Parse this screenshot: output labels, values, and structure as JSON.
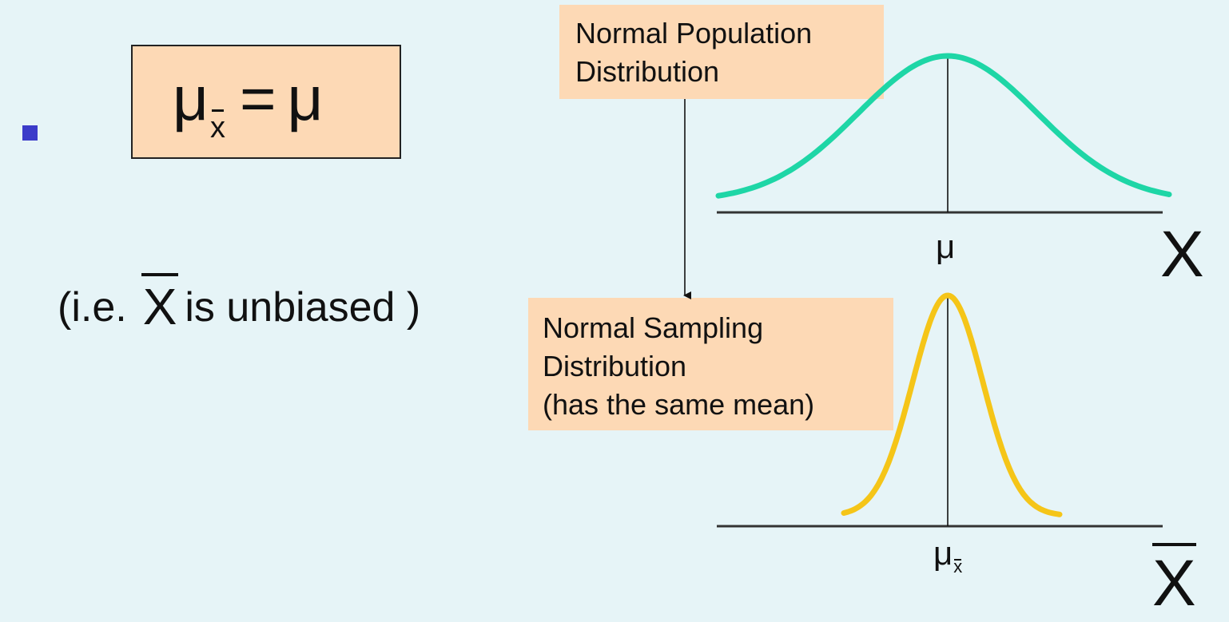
{
  "formula": {
    "lhs_symbol": "μ",
    "lhs_subscript": "x",
    "equals": "=",
    "rhs_symbol": "μ"
  },
  "note": {
    "open": "(i.e.",
    "symbol": "X",
    "text": "is unbiased )"
  },
  "population": {
    "label_line1": "Normal Population",
    "label_line2": "Distribution",
    "mean_tick": "μ",
    "axis_label": "X",
    "curve_color": "#1ed6a6"
  },
  "sampling": {
    "label_line1": "Normal Sampling",
    "label_line2": "Distribution",
    "label_line3": "(has the same mean)",
    "mean_tick": "μ",
    "mean_tick_subscript": "x",
    "axis_label": "X",
    "curve_color": "#f5c518"
  },
  "colors": {
    "background": "#e6f4f7",
    "box_fill": "#fdd9b5",
    "bullet": "#3b3bc9"
  }
}
